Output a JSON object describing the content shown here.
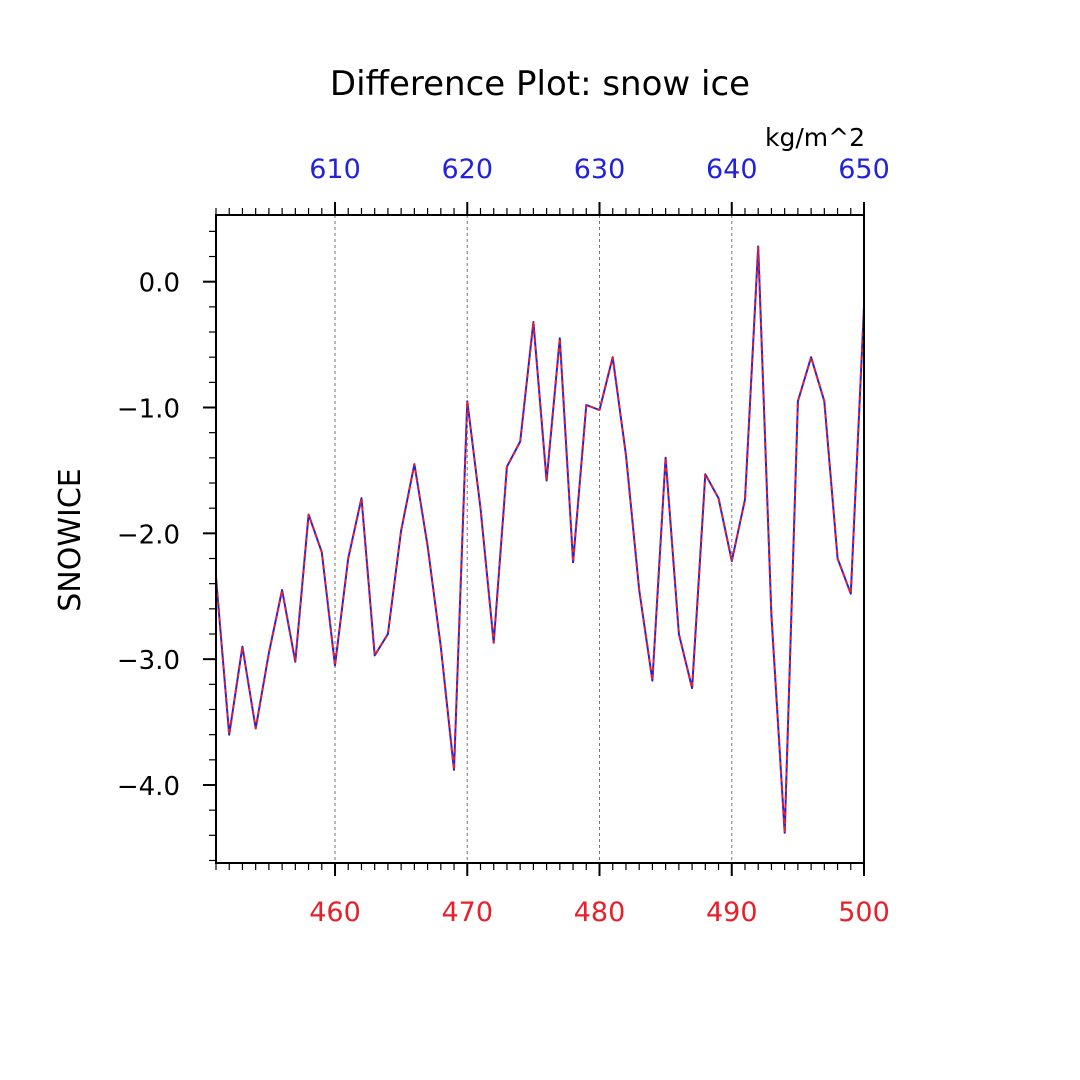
{
  "chart_data": {
    "type": "line",
    "title": "Difference Plot: snow ice",
    "units": "kg/m^2",
    "ylabel": "SNOWICE",
    "ylim": [
      -4.62,
      0.53
    ],
    "yticks": [
      0.0,
      -1.0,
      -2.0,
      -3.0,
      -4.0
    ],
    "ytick_labels": [
      "0.0",
      "−1.0",
      "−2.0",
      "−3.0",
      "−4.0"
    ],
    "x_bottom": {
      "range": [
        451,
        500
      ],
      "ticks": [
        460,
        470,
        480,
        490,
        500
      ],
      "tick_labels": [
        "460",
        "470",
        "480",
        "490",
        "500"
      ],
      "color": "#e8202a"
    },
    "x_top": {
      "range": [
        601,
        650
      ],
      "ticks": [
        610,
        620,
        630,
        640,
        650
      ],
      "tick_labels": [
        "610",
        "620",
        "630",
        "640",
        "650"
      ],
      "color": "#2222dd"
    },
    "grid_vertical_at": [
      460,
      470,
      480,
      490
    ],
    "series": [
      {
        "color": "#2222dd",
        "style": "solid",
        "x": [
          451,
          452,
          453,
          454,
          455,
          456,
          457,
          458,
          459,
          460,
          461,
          462,
          463,
          464,
          465,
          466,
          467,
          468,
          469,
          470,
          471,
          472,
          473,
          474,
          475,
          476,
          477,
          478,
          479,
          480,
          481,
          482,
          483,
          484,
          485,
          486,
          487,
          488,
          489,
          490,
          491,
          492,
          493,
          494,
          495,
          496,
          497,
          498,
          499,
          500
        ],
        "y": [
          -2.35,
          -3.6,
          -2.9,
          -3.55,
          -2.95,
          -2.45,
          -3.02,
          -1.85,
          -2.15,
          -3.05,
          -2.2,
          -1.72,
          -2.97,
          -2.8,
          -1.98,
          -1.45,
          -2.1,
          -2.9,
          -3.88,
          -0.95,
          -1.8,
          -2.87,
          -1.47,
          -1.27,
          -0.32,
          -1.58,
          -0.45,
          -2.23,
          -0.98,
          -1.02,
          -0.6,
          -1.38,
          -2.45,
          -3.17,
          -1.4,
          -2.8,
          -3.23,
          -1.53,
          -1.72,
          -2.22,
          -1.73,
          0.28,
          -2.65,
          -4.38,
          -0.95,
          -0.6,
          -0.95,
          -2.2,
          -2.48,
          -0.2
        ]
      },
      {
        "color": "#e8202a",
        "style": "dashed",
        "x": [
          451,
          452,
          453,
          454,
          455,
          456,
          457,
          458,
          459,
          460,
          461,
          462,
          463,
          464,
          465,
          466,
          467,
          468,
          469,
          470,
          471,
          472,
          473,
          474,
          475,
          476,
          477,
          478,
          479,
          480,
          481,
          482,
          483,
          484,
          485,
          486,
          487,
          488,
          489,
          490,
          491,
          492,
          493,
          494,
          495,
          496,
          497,
          498,
          499,
          500
        ],
        "y": [
          -2.35,
          -3.6,
          -2.9,
          -3.55,
          -2.95,
          -2.45,
          -3.02,
          -1.85,
          -2.15,
          -3.05,
          -2.2,
          -1.72,
          -2.97,
          -2.8,
          -1.98,
          -1.45,
          -2.1,
          -2.9,
          -3.88,
          -0.95,
          -1.8,
          -2.87,
          -1.47,
          -1.27,
          -0.32,
          -1.58,
          -0.45,
          -2.23,
          -0.98,
          -1.02,
          -0.6,
          -1.38,
          -2.45,
          -3.17,
          -1.4,
          -2.8,
          -3.23,
          -1.53,
          -1.72,
          -2.22,
          -1.73,
          0.28,
          -2.65,
          -4.38,
          -0.95,
          -0.6,
          -0.95,
          -2.2,
          -2.48,
          -0.2
        ]
      }
    ]
  }
}
